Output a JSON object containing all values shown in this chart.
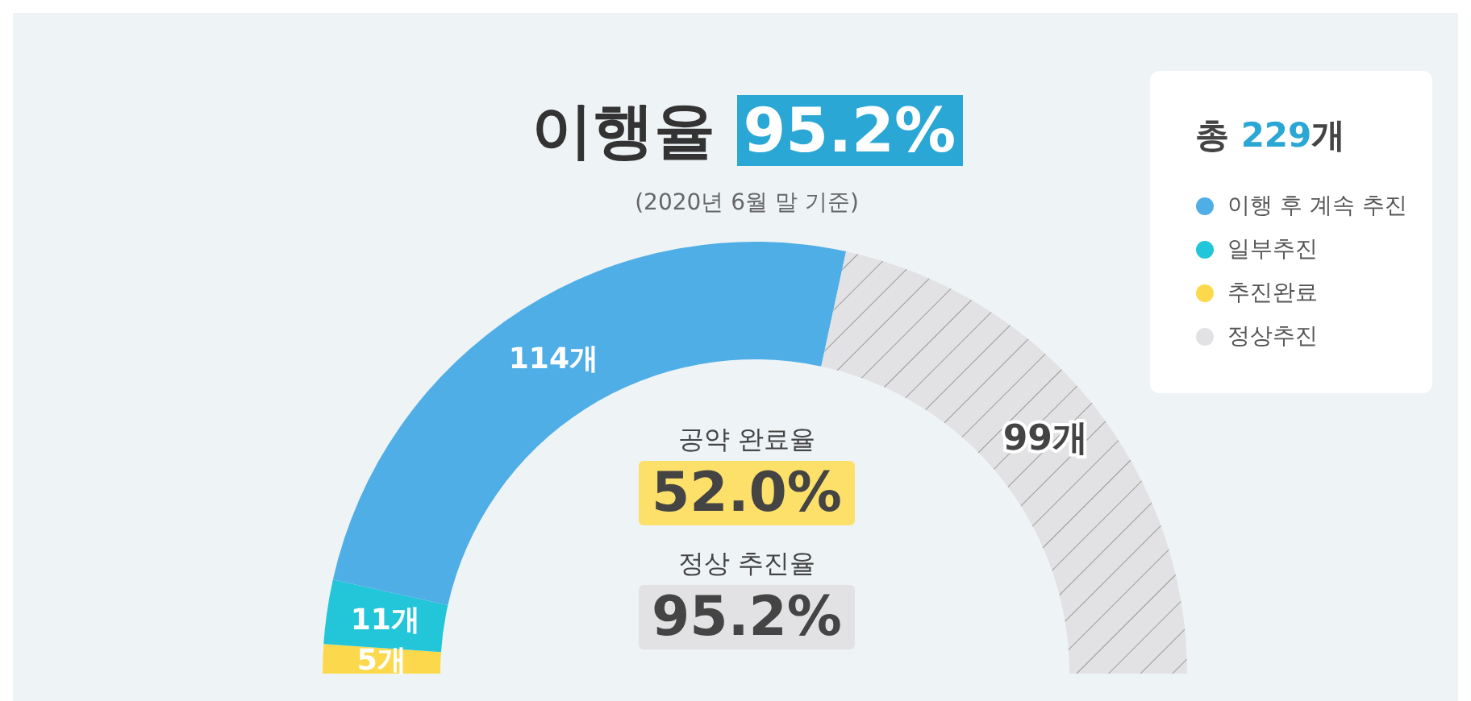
{
  "chart_data": {
    "type": "donut",
    "title": "이행율 95.2%",
    "subtitle": "(2020년 6월 말 기준)",
    "legend_title": "총 229개",
    "legend": "top right",
    "categories": [
      "추진완료",
      "일부추진",
      "이행 후 계속 추진",
      "정상추진"
    ],
    "values": [
      5,
      11,
      114,
      99
    ],
    "value_labels": [
      "5개",
      "11개",
      "114개",
      "99개"
    ],
    "colors": [
      "#fcd94c",
      "#22c6d8",
      "#4faee6",
      "#e2e2e4"
    ],
    "annotations": [
      "공약 완료율",
      "52.0%",
      "정상 추진율",
      "95.2%"
    ]
  }
}
